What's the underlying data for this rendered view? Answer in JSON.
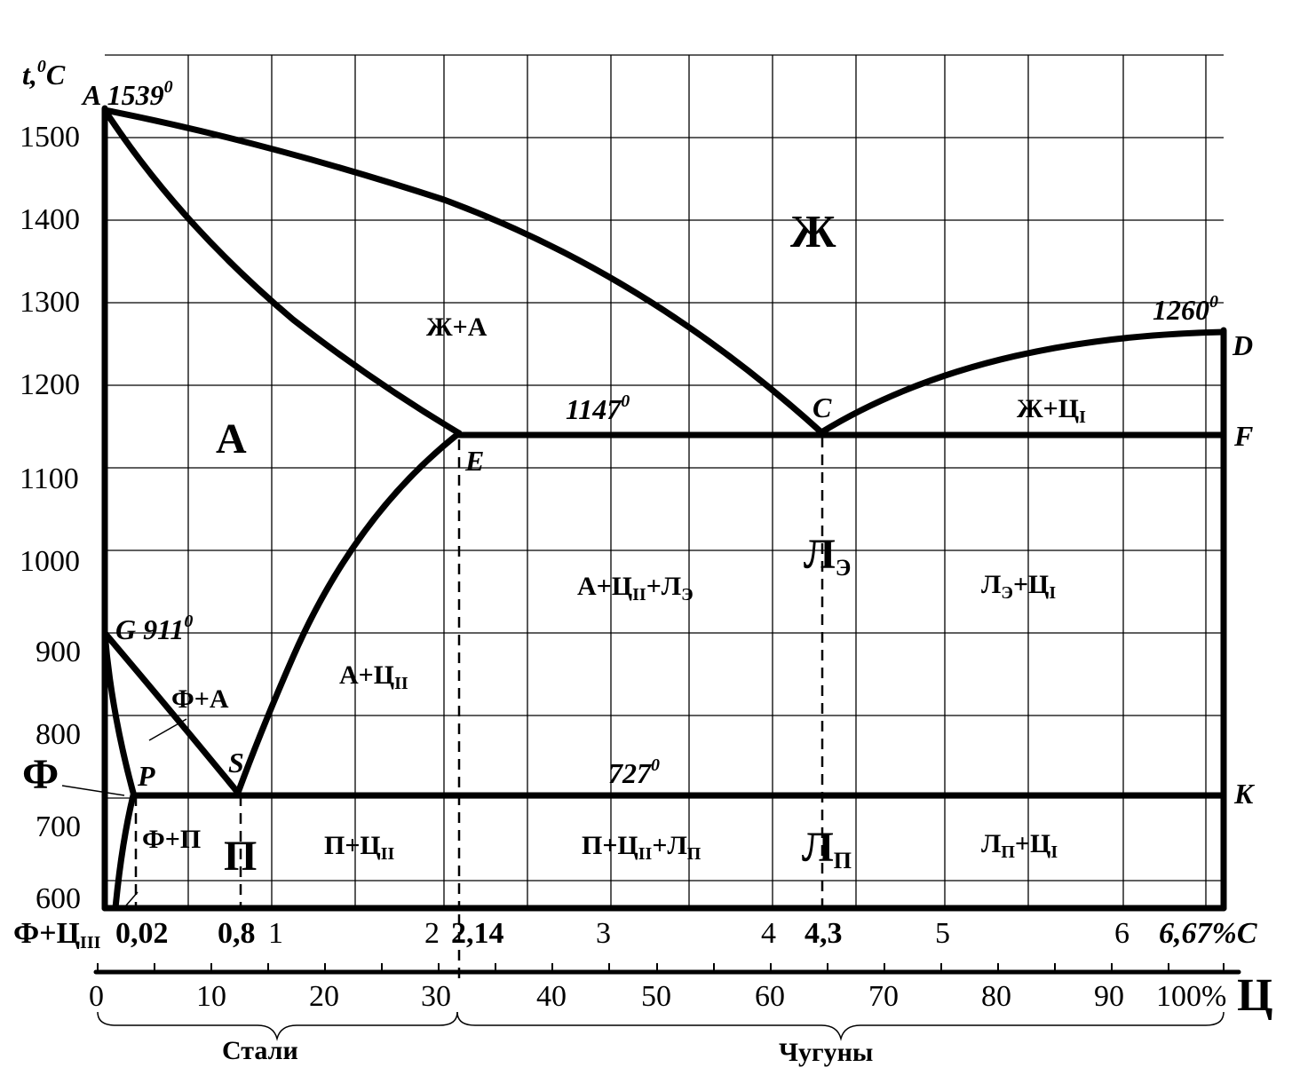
{
  "axis": {
    "y_title_main": "t,",
    "y_title_sup": "0",
    "y_title_unit": "C",
    "y_ticks": [
      "1500",
      "1400",
      "1300",
      "1200",
      "1100",
      "1000",
      "900",
      "800",
      "700",
      "600"
    ],
    "x_ticks_wt": [
      "1",
      "2",
      "3",
      "4",
      "5",
      "6"
    ],
    "x_special_wt": [
      "0,02",
      "0,8",
      "2,14",
      "4,3",
      "6,67%C"
    ],
    "x_ticks_cem": [
      "0",
      "10",
      "20",
      "30",
      "40",
      "50",
      "60",
      "70",
      "80",
      "90",
      "100%"
    ],
    "cem_symbol": "Ц",
    "bottom_left_label": "Ф+Ц",
    "bottom_left_sub": "III"
  },
  "points": {
    "A": "A",
    "A_temp": "1539",
    "A_sup": "0",
    "G": "G",
    "G_temp": "911",
    "G_sup": "0",
    "E": "E",
    "C": "C",
    "D": "D",
    "F": "F",
    "K": "K",
    "P": "P",
    "S": "S",
    "D_temp": "1260",
    "D_sup": "0",
    "eut_temp": "1147",
    "eut_sup": "0",
    "eutd_temp": "727",
    "eutd_sup": "0"
  },
  "regions": {
    "liquid": "Ж",
    "austenite": "А",
    "liq_aus": "Ж+А",
    "liq_cem": "Ж+Ц",
    "liq_cem_sub": "I",
    "ledeburite_e": "Л",
    "ledeburite_e_sub": "Э",
    "aus_cem_led_1": "А+Ц",
    "aus_cem_led_sub1": "II",
    "aus_cem_led_2": "+Л",
    "aus_cem_led_sub2": "Э",
    "led_cem": "Л",
    "led_cem_sub1": "Э",
    "led_cem_2": "+Ц",
    "led_cem_sub2": "I",
    "aus_cem": "А+Ц",
    "aus_cem_sub": "II",
    "ferr_aus": "Ф+А",
    "ferrite": "Ф",
    "ferr_pearl": "Ф+П",
    "pearlite": "П",
    "pearl_cem": "П+Ц",
    "pearl_cem_sub": "II",
    "pcl_1": "П+Ц",
    "pcl_sub1": "II",
    "pcl_2": "+Л",
    "pcl_sub2": "П",
    "ledeburite_p": "Л",
    "ledeburite_p_sub": "П",
    "lp_cem": "Л",
    "lp_cem_sub1": "П",
    "lp_cem_2": "+Ц",
    "lp_cem_sub2": "I"
  },
  "braces": {
    "steels": "Стали",
    "cast_irons": "Чугуны"
  }
}
